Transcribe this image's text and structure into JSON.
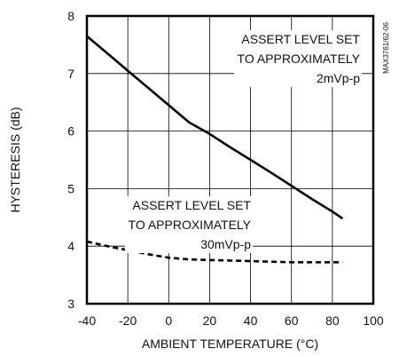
{
  "chart_data": {
    "type": "line",
    "title": "",
    "chart_id": "MAX3761/62-06",
    "xlabel": "AMBIENT TEMPERATURE (°C)",
    "ylabel": "HYSTERESIS (dB)",
    "xlim": [
      -40,
      100
    ],
    "ylim": [
      3,
      8
    ],
    "xticks": [
      -40,
      -20,
      0,
      20,
      40,
      60,
      80,
      100
    ],
    "yticks": [
      3,
      4,
      5,
      6,
      7,
      8
    ],
    "xtick_labels": [
      "-40",
      "-20",
      "0",
      "20",
      "40",
      "60",
      "80",
      "100"
    ],
    "ytick_labels": [
      "3",
      "4",
      "5",
      "6",
      "7",
      "8"
    ],
    "grid": true,
    "series": [
      {
        "style": "solid",
        "annotation": [
          "ASSERT LEVEL SET",
          "TO APPROXIMATELY",
          "2mVp-p"
        ],
        "x": [
          -40,
          -30,
          -20,
          -10,
          0,
          10,
          20,
          30,
          40,
          50,
          60,
          70,
          80,
          85
        ],
        "y": [
          7.65,
          7.35,
          7.05,
          6.75,
          6.45,
          6.15,
          5.95,
          5.72,
          5.5,
          5.28,
          5.05,
          4.82,
          4.6,
          4.48
        ]
      },
      {
        "style": "dashed",
        "annotation": [
          "ASSERT LEVEL SET",
          "TO APPROXIMATELY",
          "30mVp-p"
        ],
        "x": [
          -40,
          -30,
          -20,
          -10,
          0,
          10,
          20,
          30,
          40,
          50,
          60,
          70,
          80,
          85
        ],
        "y": [
          4.08,
          4.0,
          3.93,
          3.86,
          3.8,
          3.77,
          3.76,
          3.75,
          3.74,
          3.73,
          3.72,
          3.72,
          3.72,
          3.72
        ]
      }
    ]
  }
}
